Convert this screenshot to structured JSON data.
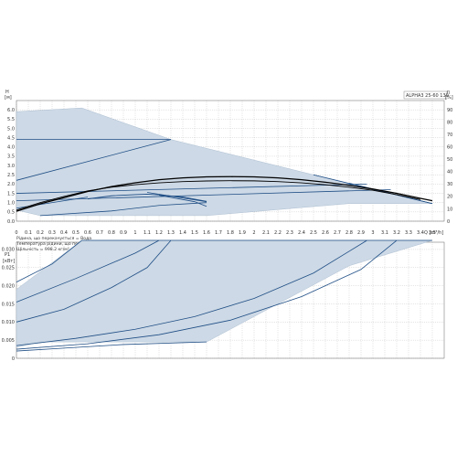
{
  "chart_data": [
    {
      "type": "line",
      "title": "ALPHA3 25-60 130",
      "x_unit": "Q [m³/h]",
      "xlim": [
        0,
        3.6
      ],
      "x_ticks": [
        0,
        0.1,
        0.2,
        0.3,
        0.4,
        0.5,
        0.6,
        0.7,
        0.8,
        0.9,
        1.0,
        1.1,
        1.2,
        1.3,
        1.4,
        1.5,
        1.6,
        1.7,
        1.8,
        1.9,
        2.0,
        2.1,
        2.2,
        2.3,
        2.4,
        2.5,
        2.6,
        2.7,
        2.8,
        2.9,
        3.0,
        3.1,
        3.2,
        3.3,
        3.4,
        3.5
      ],
      "y_left_label": "H [м]",
      "ylim": [
        0,
        6.5
      ],
      "y_ticks": [
        0,
        0.5,
        1.0,
        1.5,
        2.0,
        2.5,
        3.0,
        3.5,
        4.0,
        4.5,
        5.0,
        5.5,
        6.0
      ],
      "y_right_label": "η [%]",
      "y2lim": [
        0,
        97.5
      ],
      "y2_ticks": [
        0,
        10,
        20,
        30,
        40,
        50,
        60,
        70,
        80,
        90
      ],
      "fluid_notes": [
        "Рідина, що перекачується = Вода",
        "Температура рідини, що перекачується = 20 °C",
        "Щільність = 998.2 кг/м³"
      ],
      "envelope": [
        [
          0,
          5.9
        ],
        [
          0.55,
          6.1
        ],
        [
          1.3,
          4.4
        ],
        [
          2.5,
          2.5
        ],
        [
          3.5,
          0.95
        ],
        [
          2.8,
          0.95
        ],
        [
          1.6,
          0.3
        ],
        [
          0.2,
          0.3
        ],
        [
          0,
          0.6
        ]
      ],
      "series": [
        {
          "values": [
            [
              0,
              4.4
            ],
            [
              1.3,
              4.4
            ]
          ]
        },
        {
          "values": [
            [
              0,
              2.2
            ],
            [
              1.3,
              4.4
            ]
          ]
        },
        {
          "values": [
            [
              0,
              1.5
            ],
            [
              2.95,
              2.0
            ]
          ]
        },
        {
          "values": [
            [
              0,
              1.1
            ],
            [
              3.15,
              1.7
            ]
          ]
        },
        {
          "values": [
            [
              0,
              0.7
            ],
            [
              0.6,
              1.3
            ]
          ]
        },
        {
          "values": [
            [
              1.1,
              1.55
            ],
            [
              1.6,
              1.05
            ]
          ]
        },
        {
          "values": [
            [
              2.5,
              2.5
            ],
            [
              3.5,
              0.95
            ]
          ]
        },
        {
          "values": [
            [
              2.8,
              2.05
            ],
            [
              3.5,
              0.95
            ]
          ]
        },
        {
          "values": [
            [
              1.2,
              1.4
            ],
            [
              1.5,
              1.05
            ],
            [
              1.6,
              0.8
            ]
          ]
        },
        {
          "values": [
            [
              0.2,
              0.3
            ],
            [
              0.8,
              0.55
            ],
            [
              1.2,
              0.85
            ],
            [
              1.6,
              1.0
            ]
          ]
        }
      ],
      "efficiency_curves": [
        {
          "values": [
            [
              0,
              8
            ],
            [
              0.2,
              14
            ],
            [
              0.4,
              19
            ],
            [
              0.6,
              24
            ],
            [
              0.8,
              28
            ],
            [
              1.0,
              31
            ],
            [
              1.2,
              33.5
            ],
            [
              1.4,
              35
            ],
            [
              1.6,
              35.8
            ],
            [
              1.8,
              36
            ],
            [
              2.0,
              35.8
            ],
            [
              2.2,
              35
            ],
            [
              2.4,
              33.5
            ],
            [
              2.6,
              31.5
            ],
            [
              2.8,
              29
            ],
            [
              3.0,
              26
            ],
            [
              3.2,
              22.5
            ],
            [
              3.4,
              18.5
            ],
            [
              3.5,
              16.5
            ]
          ]
        },
        {
          "values": [
            [
              0,
              9
            ],
            [
              0.2,
              15
            ],
            [
              0.4,
              20
            ],
            [
              0.6,
              24.5
            ],
            [
              0.8,
              27.5
            ],
            [
              1.0,
              29.5
            ],
            [
              1.2,
              31
            ],
            [
              1.4,
              32
            ],
            [
              1.6,
              32.5
            ],
            [
              1.8,
              32.7
            ],
            [
              2.0,
              32.6
            ],
            [
              2.2,
              32
            ],
            [
              2.4,
              31
            ],
            [
              2.6,
              29.5
            ],
            [
              2.8,
              27.5
            ],
            [
              3.0,
              25
            ],
            [
              3.2,
              21.5
            ],
            [
              3.4,
              17.5
            ]
          ]
        },
        {
          "values": [
            [
              0.6,
              18
            ],
            [
              0.8,
              20.5
            ],
            [
              1.0,
              21.5
            ],
            [
              1.1,
              21.8
            ],
            [
              1.2,
              21.3
            ],
            [
              1.4,
              19.5
            ],
            [
              1.6,
              16
            ]
          ]
        }
      ]
    },
    {
      "type": "line",
      "y_left_label": "P1 [кВт]",
      "ylim": [
        0,
        0.032
      ],
      "y_ticks": [
        0,
        0.005,
        0.01,
        0.015,
        0.02,
        0.025,
        0.03
      ],
      "y_tick_labels": [
        "0",
        "0.005",
        "0.010",
        "0.015",
        "0.020",
        "0.025",
        "0.030"
      ],
      "xlim": [
        0,
        3.6
      ],
      "envelope": [
        [
          0,
          0.019
        ],
        [
          0.55,
          0.0325
        ],
        [
          3.5,
          0.0325
        ],
        [
          2.8,
          0.0255
        ],
        [
          1.6,
          0.0045
        ],
        [
          0.2,
          0.0045
        ],
        [
          0,
          0.003
        ]
      ],
      "series": [
        {
          "values": [
            [
              0.55,
              0.0325
            ],
            [
              3.5,
              0.0325
            ]
          ]
        },
        {
          "values": [
            [
              0,
              0.021
            ],
            [
              0.3,
              0.026
            ],
            [
              0.55,
              0.0325
            ]
          ]
        },
        {
          "values": [
            [
              0,
              0.0155
            ],
            [
              0.5,
              0.022
            ],
            [
              1.0,
              0.029
            ],
            [
              1.2,
              0.0325
            ]
          ]
        },
        {
          "values": [
            [
              0,
              0.01
            ],
            [
              0.4,
              0.0135
            ],
            [
              0.8,
              0.0195
            ],
            [
              1.1,
              0.025
            ],
            [
              1.3,
              0.0325
            ]
          ]
        },
        {
          "values": [
            [
              0,
              0.0035
            ],
            [
              0.5,
              0.0055
            ],
            [
              1.0,
              0.008
            ],
            [
              1.5,
              0.0115
            ],
            [
              2.0,
              0.0165
            ],
            [
              2.5,
              0.0235
            ],
            [
              2.8,
              0.0295
            ],
            [
              2.95,
              0.0325
            ]
          ]
        },
        {
          "values": [
            [
              0,
              0.0025
            ],
            [
              0.6,
              0.004
            ],
            [
              1.2,
              0.0065
            ],
            [
              1.8,
              0.0105
            ],
            [
              2.4,
              0.017
            ],
            [
              2.9,
              0.0245
            ],
            [
              3.2,
              0.0325
            ]
          ]
        },
        {
          "values": [
            [
              0,
              0.002
            ],
            [
              0.4,
              0.0028
            ],
            [
              0.9,
              0.0038
            ],
            [
              1.6,
              0.0045
            ]
          ]
        }
      ]
    }
  ],
  "colors": {
    "fill": "#cdd9e6",
    "curve": "#1f4e85",
    "efficiency": "#000000",
    "grid": "#a8a8a8",
    "axis": "#666666"
  }
}
